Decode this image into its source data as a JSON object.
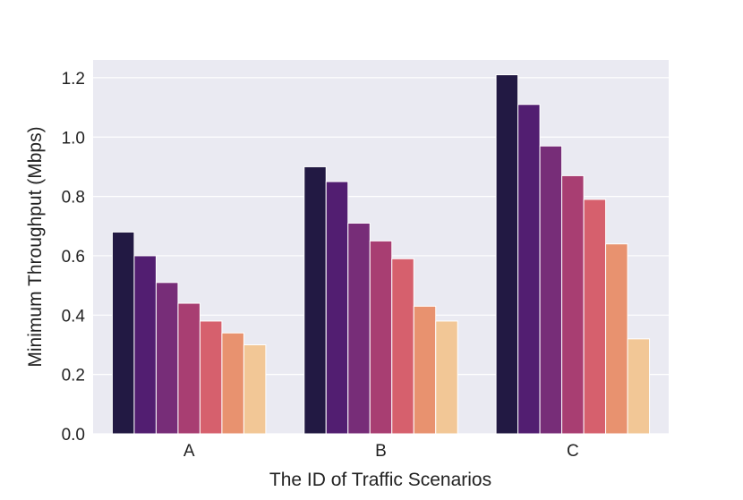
{
  "chart_data": {
    "type": "bar",
    "title": "",
    "xlabel": "The ID of Traffic Scenarios",
    "ylabel": "Minimum Throughput (Mbps)",
    "categories": [
      "A",
      "B",
      "C"
    ],
    "ylim": [
      0,
      1.26
    ],
    "yticks": [
      0.0,
      0.2,
      0.4,
      0.6,
      0.8,
      1.0,
      1.2
    ],
    "ytick_labels": [
      "0.0",
      "0.2",
      "0.4",
      "0.6",
      "0.8",
      "1.0",
      "1.2"
    ],
    "grid": true,
    "legend": "none",
    "colors": [
      "#221943",
      "#521e71",
      "#772d78",
      "#a83e72",
      "#d6606d",
      "#e8926f",
      "#f2c796"
    ],
    "background": "#eaeaf2",
    "series": [
      {
        "name": "series-1",
        "values": [
          0.68,
          0.9,
          1.21
        ]
      },
      {
        "name": "series-2",
        "values": [
          0.6,
          0.85,
          1.11
        ]
      },
      {
        "name": "series-3",
        "values": [
          0.51,
          0.71,
          0.97
        ]
      },
      {
        "name": "series-4",
        "values": [
          0.44,
          0.65,
          0.87
        ]
      },
      {
        "name": "series-5",
        "values": [
          0.38,
          0.59,
          0.79
        ]
      },
      {
        "name": "series-6",
        "values": [
          0.34,
          0.43,
          0.64
        ]
      },
      {
        "name": "series-7",
        "values": [
          0.3,
          0.38,
          0.32
        ]
      }
    ]
  }
}
